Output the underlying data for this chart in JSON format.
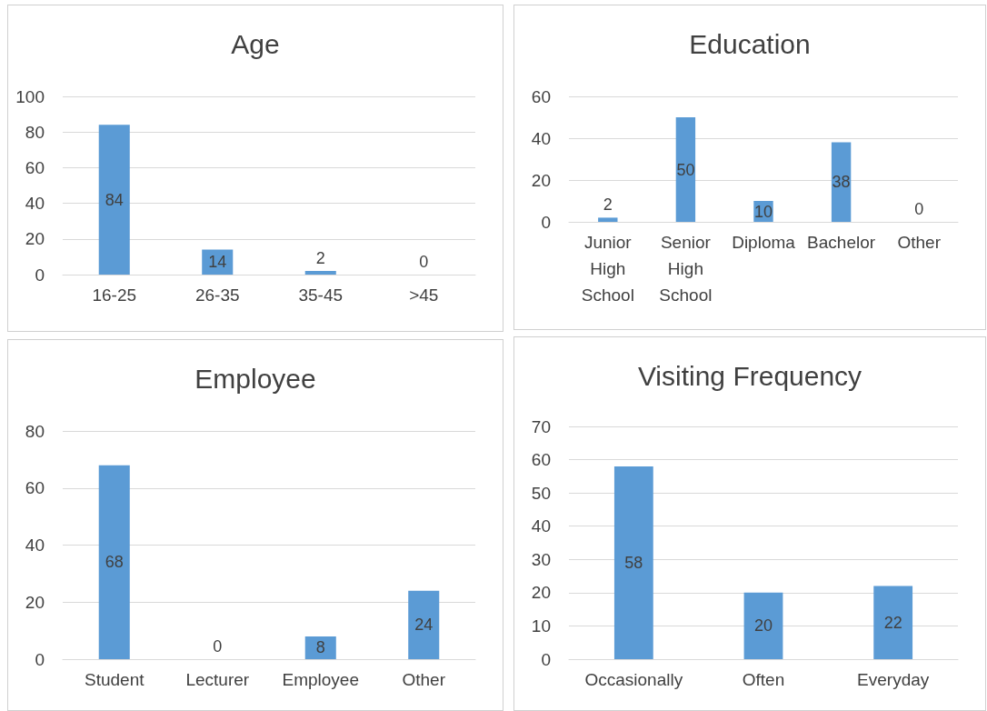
{
  "chart_data": [
    {
      "type": "bar",
      "title": "Age",
      "categories": [
        "16-25",
        "26-35",
        "35-45",
        ">45"
      ],
      "values": [
        84,
        14,
        2,
        0
      ],
      "color": "#5b9bd5",
      "ylim": [
        0,
        100
      ],
      "yticks": [
        0,
        20,
        40,
        60,
        80,
        100
      ],
      "grid": "y",
      "data_labels": true
    },
    {
      "type": "bar",
      "title": "Education",
      "categories": [
        "Junior High School",
        "Senior High School",
        "Diploma",
        "Bachelor",
        "Other"
      ],
      "values": [
        2,
        50,
        10,
        38,
        0
      ],
      "color": "#5b9bd5",
      "ylim": [
        0,
        60
      ],
      "yticks": [
        0,
        20,
        40,
        60
      ],
      "grid": "y",
      "data_labels": true
    },
    {
      "type": "bar",
      "title": "Employee",
      "categories": [
        "Student",
        "Lecturer",
        "Employee",
        "Other"
      ],
      "values": [
        68,
        0,
        8,
        24
      ],
      "color": "#5b9bd5",
      "ylim": [
        0,
        80
      ],
      "yticks": [
        0,
        20,
        40,
        60,
        80
      ],
      "grid": "y",
      "data_labels": true
    },
    {
      "type": "bar",
      "title": "Visiting Frequency",
      "categories": [
        "Occasionally",
        "Often",
        "Everyday"
      ],
      "values": [
        58,
        20,
        22
      ],
      "color": "#5b9bd5",
      "ylim": [
        0,
        70
      ],
      "yticks": [
        0,
        10,
        20,
        30,
        40,
        50,
        60,
        70
      ],
      "grid": "y",
      "data_labels": true
    }
  ]
}
